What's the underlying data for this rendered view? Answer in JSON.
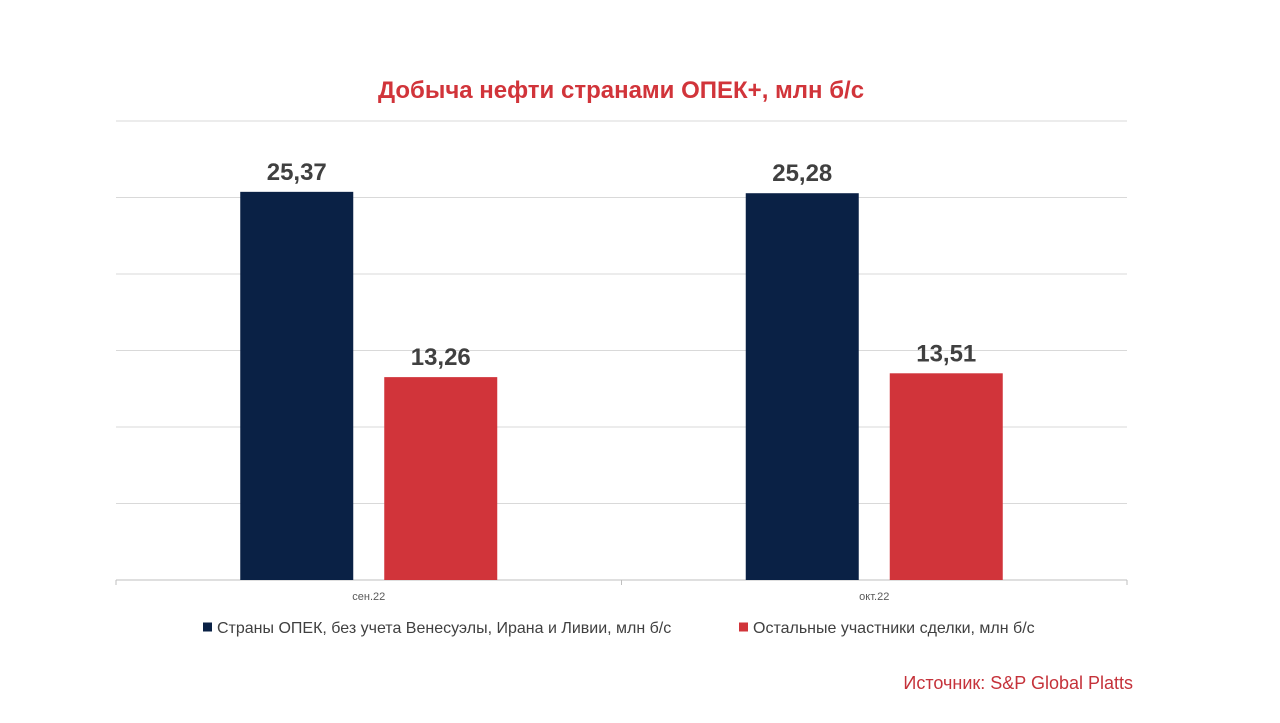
{
  "colors": {
    "title": "#d1343a",
    "source": "#c5323a",
    "series_opec": "#0a2145",
    "series_others": "#d1343a",
    "grid": "#d9d9d9",
    "axis": "#bfbfbf"
  },
  "source": "Источник: S&P Global Platts",
  "chart_data": {
    "type": "bar",
    "title": "Добыча нефти странами ОПЕК+, млн б/с",
    "xlabel": "",
    "ylabel": "",
    "categories": [
      "сен.22",
      "окт.22"
    ],
    "series": [
      {
        "name": "Страны ОПЕК, без учета Венесуэлы, Ирана и Ливии, млн б/с",
        "values": [
          25.37,
          25.28
        ],
        "labels": [
          "25,37",
          "25,28"
        ]
      },
      {
        "name": "Остальные участники сделки, млн б/с",
        "values": [
          13.26,
          13.51
        ],
        "labels": [
          "13,26",
          "13,51"
        ]
      }
    ],
    "ylim": [
      0,
      30
    ],
    "gridlines": true,
    "legend": "bottom"
  }
}
